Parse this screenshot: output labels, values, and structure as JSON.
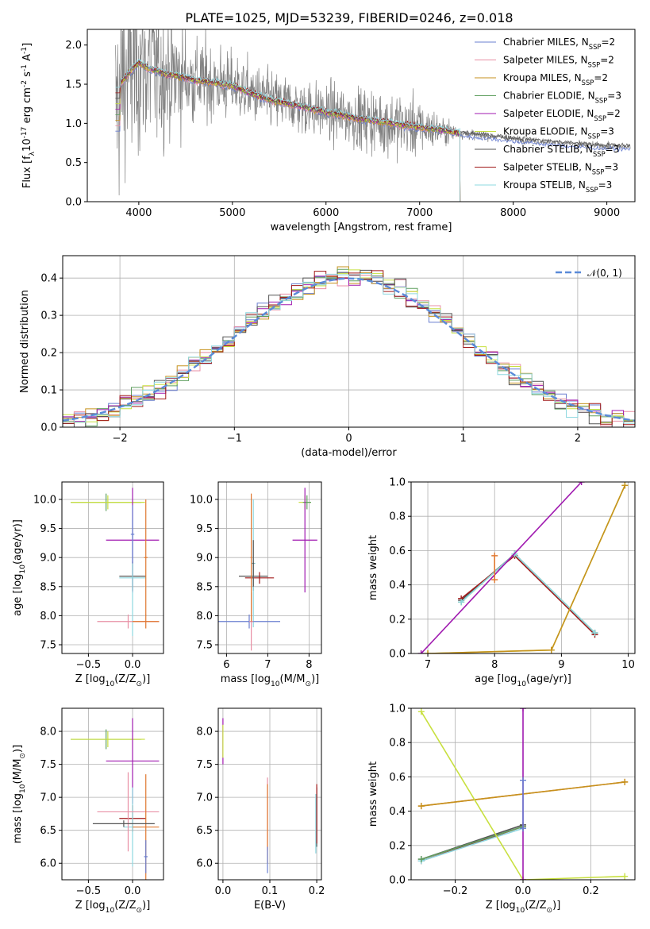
{
  "title": "PLATE=1025, MJD=53239, FIBERID=0246, z=0.018",
  "colors": {
    "data": "#808080",
    "series": [
      "#6a7fd0",
      "#e88fa4",
      "#c6921e",
      "#5f9f5f",
      "#a01ab0",
      "#c8e040",
      "#555555",
      "#a01818",
      "#8ed8e0"
    ],
    "orange": "#e07830",
    "purple": "#9d2fae",
    "lime": "#cbe55a",
    "normal": "#5a8ad8"
  },
  "legend_labels": [
    "Chabrier MILES, N$_{SSP}$=2",
    "Salpeter MILES, N$_{SSP}$=2",
    "Kroupa MILES, N$_{SSP}$=2",
    "Chabrier ELODIE, N$_{SSP}$=3",
    "Salpeter ELODIE, N$_{SSP}$=2",
    "Kroupa ELODIE, N$_{SSP}$=3",
    "Chabrier STELIB, N$_{SSP}$=3",
    "Salpeter STELIB, N$_{SSP}$=3",
    "Kroupa STELIB, N$_{SSP}$=3"
  ],
  "chart_data": [
    {
      "id": "spectrum",
      "type": "line",
      "xlabel": "wavelength [Angstrom, rest frame]",
      "ylabel": "Flux [f$_\\lambda$10$^{-17}$ erg cm$^{-2}$ s$^{-1}$ A$^{-1}$]",
      "xlim": [
        3450,
        9300
      ],
      "ylim": [
        0,
        2.2
      ],
      "xticks": [
        4000,
        5000,
        6000,
        7000,
        8000,
        9000
      ],
      "yticks": [
        0.0,
        0.5,
        1.0,
        1.5,
        2.0
      ],
      "grid": false,
      "legend_loc": "upper right",
      "x": [
        3750,
        3800,
        3900,
        4000,
        4100,
        4200,
        4300,
        4400,
        4500,
        4600,
        4800,
        5000,
        5200,
        5400,
        5600,
        5800,
        6000,
        6200,
        6400,
        6600,
        6800,
        7000,
        7200,
        7400,
        7600,
        7800,
        8000,
        8200,
        8400,
        8600,
        8800,
        9000,
        9250
      ],
      "model_flux": [
        1.15,
        1.5,
        1.65,
        1.78,
        1.7,
        1.67,
        1.62,
        1.61,
        1.58,
        1.55,
        1.52,
        1.48,
        1.38,
        1.3,
        1.25,
        1.2,
        1.14,
        1.1,
        1.05,
        1.02,
        0.98,
        0.95,
        0.92,
        0.88,
        0.85,
        0.83,
        0.8,
        0.78,
        0.76,
        0.74,
        0.72,
        0.71,
        0.7
      ],
      "data_noise": [
        0.9,
        1.0,
        0.9,
        0.85,
        0.8,
        0.7,
        0.6,
        0.55,
        0.45,
        0.4,
        0.35,
        0.3,
        0.28,
        0.26,
        0.25,
        0.26,
        0.25,
        0.27,
        0.28,
        0.3,
        0.3,
        0.25,
        0.15,
        0.06,
        0.04,
        0.03,
        0.03,
        0.03,
        0.03,
        0.03,
        0.03,
        0.03,
        0.03
      ]
    },
    {
      "id": "residuals",
      "type": "line",
      "xlabel": "(data-model)/error",
      "ylabel": "Normed distribution",
      "xlim": [
        -2.5,
        2.5
      ],
      "ylim": [
        0,
        0.46
      ],
      "xticks": [
        -2,
        -1,
        0,
        1,
        2
      ],
      "yticks": [
        0.0,
        0.1,
        0.2,
        0.3,
        0.4
      ],
      "grid": true,
      "legend_loc": "upper right",
      "normal_label": "$\\mathcal{N}(0, 1)$",
      "bin_width": 0.1
    },
    {
      "id": "age_vs_Z",
      "type": "scatter",
      "xlabel": "Z [log$_{10}$(Z/Z$_\\odot$)]",
      "ylabel": "age  [log$_{10}$(age/yr)]",
      "xlim": [
        -0.8,
        0.35
      ],
      "ylim": [
        7.35,
        10.3
      ],
      "xticks": [
        -0.5,
        0.0
      ],
      "xtick_labels": [
        "−0.5",
        "0.0"
      ],
      "yticks": [
        7.5,
        8.0,
        8.5,
        9.0,
        9.5,
        10.0
      ],
      "grid": true,
      "points": [
        {
          "x": -0.3,
          "y": 9.95,
          "xe": 0.4,
          "ye": 0.15,
          "c": "#5f9f5f"
        },
        {
          "x": -0.28,
          "y": 9.95,
          "xe": 0.42,
          "ye": 0.12,
          "c": "#c8e040"
        },
        {
          "x": 0.0,
          "y": 9.3,
          "xe": 0.3,
          "ye": 0.9,
          "c": "#a01ab0"
        },
        {
          "x": 0.0,
          "y": 8.68,
          "xe": 0.15,
          "ye": 0.25,
          "c": "#555555"
        },
        {
          "x": 0.0,
          "y": 8.65,
          "xe": 0.15,
          "ye": 1.0,
          "c": "#8ed8e0"
        },
        {
          "x": 0.0,
          "y": 9.4,
          "xe": 0.02,
          "ye": 0.5,
          "c": "#6a7fd0"
        },
        {
          "x": -0.05,
          "y": 7.9,
          "xe": 0.35,
          "ye": 0.12,
          "c": "#e88fa4"
        },
        {
          "x": 0.15,
          "y": 7.9,
          "xe": 0.15,
          "ye": 0.12,
          "c": "#e07830"
        },
        {
          "x": 0.15,
          "y": 9.0,
          "xe": 0.02,
          "ye": 1.0,
          "c": "#e07830"
        }
      ]
    },
    {
      "id": "age_vs_mass",
      "type": "scatter",
      "xlabel": "mass [log$_{10}$(M/M$_\\odot$)]",
      "ylabel": "",
      "xlim": [
        5.8,
        8.3
      ],
      "ylim": [
        7.35,
        10.3
      ],
      "xticks": [
        6,
        7,
        8
      ],
      "yticks": [
        7.5,
        8.0,
        8.5,
        9.0,
        9.5,
        10.0
      ],
      "grid": true,
      "points": [
        {
          "x": 7.9,
          "y": 9.95,
          "xe": 0.15,
          "ye": 0.12,
          "c": "#c8e040"
        },
        {
          "x": 7.95,
          "y": 9.95,
          "xe": 0.1,
          "ye": 0.12,
          "c": "#5f9f5f"
        },
        {
          "x": 7.9,
          "y": 9.3,
          "xe": 0.3,
          "ye": 0.9,
          "c": "#a01ab0"
        },
        {
          "x": 6.65,
          "y": 8.68,
          "xe": 0.35,
          "ye": 0.25,
          "c": "#555555"
        },
        {
          "x": 6.8,
          "y": 8.65,
          "xe": 0.35,
          "ye": 0.1,
          "c": "#a01818"
        },
        {
          "x": 6.65,
          "y": 8.9,
          "xe": 0.05,
          "ye": 1.1,
          "c": "#8ed8e0"
        },
        {
          "x": 6.55,
          "y": 7.9,
          "xe": 0.75,
          "ye": 0.12,
          "c": "#6a7fd0"
        },
        {
          "x": 6.6,
          "y": 7.9,
          "xe": 0.05,
          "ye": 0.5,
          "c": "#e88fa4"
        },
        {
          "x": 6.6,
          "y": 9.0,
          "xe": 0.02,
          "ye": 1.1,
          "c": "#e07830"
        },
        {
          "x": 6.65,
          "y": 8.9,
          "xe": 0.02,
          "ye": 0.4,
          "c": "#555555"
        }
      ]
    },
    {
      "id": "weight_vs_age",
      "type": "line",
      "xlabel": "age  [log$_{10}$(age/yr)]",
      "ylabel": "mass weight",
      "xlim": [
        6.75,
        10.1
      ],
      "ylim": [
        0,
        1.0
      ],
      "xticks": [
        7,
        8,
        9,
        10
      ],
      "yticks": [
        0.0,
        0.2,
        0.4,
        0.6,
        0.8,
        1.0
      ],
      "grid": true,
      "series": [
        {
          "c": "#555555",
          "x": [
            7.5,
            8.3,
            9.5
          ],
          "y": [
            0.31,
            0.58,
            0.12
          ]
        },
        {
          "c": "#a01818",
          "x": [
            7.5,
            8.3,
            9.5
          ],
          "y": [
            0.32,
            0.57,
            0.11
          ]
        },
        {
          "c": "#5f9f5f",
          "x": [
            7.5,
            8.3,
            9.5
          ],
          "y": [
            0.3,
            0.58,
            0.12
          ]
        },
        {
          "c": "#8ed8e0",
          "x": [
            7.5,
            8.3,
            9.5
          ],
          "y": [
            0.3,
            0.58,
            0.12
          ]
        },
        {
          "c": "#a01ab0",
          "x": [
            6.9,
            9.3
          ],
          "y": [
            0.0,
            1.0
          ]
        },
        {
          "c": "#c8e040",
          "x": [
            7.0,
            8.85,
            9.95
          ],
          "y": [
            0.0,
            0.02,
            0.98
          ]
        },
        {
          "c": "#c6921e",
          "x": [
            7.0,
            8.85,
            9.95
          ],
          "y": [
            0.0,
            0.02,
            0.98
          ]
        },
        {
          "c": "#e07830",
          "x": [
            8.0,
            8.0
          ],
          "y": [
            0.43,
            0.57
          ]
        }
      ]
    },
    {
      "id": "mass_vs_Z",
      "type": "scatter",
      "xlabel": "Z [log$_{10}$(Z/Z$_\\odot$)]",
      "ylabel": "mass [log$_{10}$(M/M$_\\odot$)]",
      "xlim": [
        -0.8,
        0.35
      ],
      "ylim": [
        5.75,
        8.35
      ],
      "xticks": [
        -0.5,
        0.0
      ],
      "xtick_labels": [
        "−0.5",
        "0.0"
      ],
      "yticks": [
        6.0,
        6.5,
        7.0,
        7.5,
        8.0
      ],
      "grid": true,
      "points": [
        {
          "x": -0.3,
          "y": 7.88,
          "xe": 0.4,
          "ye": 0.15,
          "c": "#5f9f5f"
        },
        {
          "x": -0.28,
          "y": 7.88,
          "xe": 0.42,
          "ye": 0.12,
          "c": "#c8e040"
        },
        {
          "x": 0.0,
          "y": 7.55,
          "xe": 0.3,
          "ye": 0.65,
          "c": "#a01ab0"
        },
        {
          "x": 0.0,
          "y": 6.68,
          "xe": 0.15,
          "ye": 0.2,
          "c": "#a01818"
        },
        {
          "x": 0.0,
          "y": 6.55,
          "xe": 0.1,
          "ye": 0.6,
          "c": "#8ed8e0"
        },
        {
          "x": -0.05,
          "y": 6.78,
          "xe": 0.35,
          "ye": 0.6,
          "c": "#e88fa4"
        },
        {
          "x": 0.15,
          "y": 6.55,
          "xe": 0.15,
          "ye": 0.8,
          "c": "#e07830"
        },
        {
          "x": -0.1,
          "y": 6.6,
          "xe": 0.35,
          "ye": 0.05,
          "c": "#555555"
        },
        {
          "x": 0.15,
          "y": 6.1,
          "xe": 0.02,
          "ye": 0.25,
          "c": "#6a7fd0"
        }
      ]
    },
    {
      "id": "mass_vs_ebv",
      "type": "scatter",
      "xlabel": "E(B-V)",
      "ylabel": "",
      "xlim": [
        -0.01,
        0.21
      ],
      "ylim": [
        5.75,
        8.35
      ],
      "xticks": [
        0.0,
        0.1,
        0.2
      ],
      "yticks": [
        6.0,
        6.5,
        7.0,
        7.5,
        8.0
      ],
      "grid": true,
      "points": [
        {
          "x": 0.0,
          "y": 7.85,
          "xe": 0.0,
          "ye": 0.35,
          "c": "#a01ab0"
        },
        {
          "x": 0.0,
          "y": 7.85,
          "xe": 0.0,
          "ye": 0.25,
          "c": "#c8e040"
        },
        {
          "x": 0.095,
          "y": 6.75,
          "xe": 0.0,
          "ye": 0.55,
          "c": "#e88fa4"
        },
        {
          "x": 0.095,
          "y": 6.6,
          "xe": 0.0,
          "ye": 0.6,
          "c": "#e07830"
        },
        {
          "x": 0.095,
          "y": 6.05,
          "xe": 0.0,
          "ye": 0.2,
          "c": "#6a7fd0"
        },
        {
          "x": 0.2,
          "y": 6.7,
          "xe": 0.0,
          "ye": 0.45,
          "c": "#555555"
        },
        {
          "x": 0.2,
          "y": 6.75,
          "xe": 0.0,
          "ye": 0.45,
          "c": "#a01818"
        },
        {
          "x": 0.198,
          "y": 6.6,
          "xe": 0.0,
          "ye": 0.45,
          "c": "#8ed8e0"
        }
      ]
    },
    {
      "id": "weight_vs_Z",
      "type": "line",
      "xlabel": "Z [log$_{10}$(Z/Z$_\\odot$)]",
      "ylabel": "mass weight",
      "xlim": [
        -0.33,
        0.33
      ],
      "ylim": [
        0,
        1.0
      ],
      "xticks": [
        -0.2,
        0.0,
        0.2
      ],
      "yticks": [
        0.0,
        0.2,
        0.4,
        0.6,
        0.8,
        1.0
      ],
      "grid": true,
      "series": [
        {
          "c": "#e07830",
          "x": [
            -0.3,
            0.3
          ],
          "y": [
            0.43,
            0.57
          ]
        },
        {
          "c": "#c6921e",
          "x": [
            -0.3,
            0.3
          ],
          "y": [
            0.43,
            0.57
          ]
        },
        {
          "c": "#555555",
          "x": [
            -0.3,
            0.0
          ],
          "y": [
            0.12,
            0.32
          ]
        },
        {
          "c": "#a01818",
          "x": [
            -0.3,
            0.0
          ],
          "y": [
            0.11,
            0.31
          ]
        },
        {
          "c": "#8ed8e0",
          "x": [
            -0.3,
            0.0
          ],
          "y": [
            0.11,
            0.3
          ]
        },
        {
          "c": "#5f9f5f",
          "x": [
            -0.3,
            0.0
          ],
          "y": [
            0.12,
            0.31
          ]
        },
        {
          "c": "#c8e040",
          "x": [
            -0.3,
            0.0,
            0.3
          ],
          "y": [
            0.98,
            0.0,
            0.02
          ]
        },
        {
          "c": "#a01ab0",
          "x": [
            0.0,
            0.0
          ],
          "y": [
            0.0,
            1.0
          ]
        },
        {
          "c": "#6a7fd0",
          "x": [
            0.0,
            0.0
          ],
          "y": [
            0.3,
            0.58
          ]
        }
      ]
    }
  ]
}
